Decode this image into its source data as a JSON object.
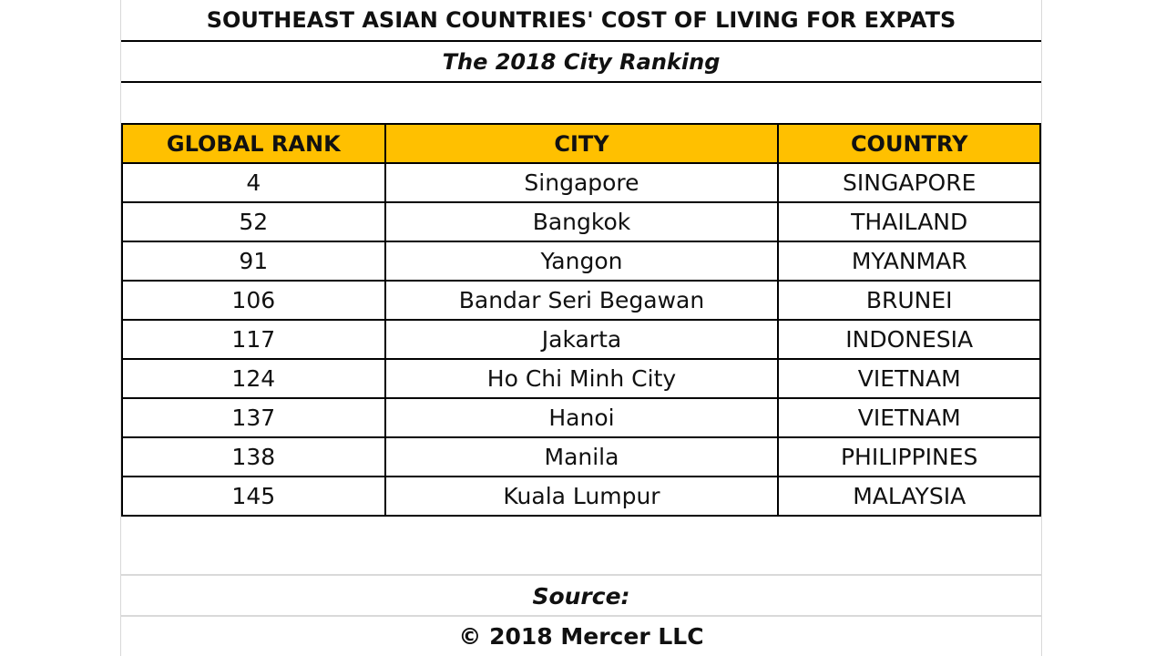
{
  "title": "SOUTHEAST ASIAN COUNTRIES' COST OF LIVING FOR EXPATS",
  "subtitle": "The 2018 City Ranking",
  "table": {
    "headers": [
      "GLOBAL RANK",
      "CITY",
      "COUNTRY"
    ],
    "header_color": "#ffc000",
    "rows": [
      [
        "4",
        "Singapore",
        "SINGAPORE"
      ],
      [
        "52",
        "Bangkok",
        "THAILAND"
      ],
      [
        "91",
        "Yangon",
        "MYANMAR"
      ],
      [
        "106",
        "Bandar Seri Begawan",
        "BRUNEI"
      ],
      [
        "117",
        "Jakarta",
        "INDONESIA"
      ],
      [
        "124",
        "Ho Chi Minh City",
        "VIETNAM"
      ],
      [
        "137",
        "Hanoi",
        "VIETNAM"
      ],
      [
        "138",
        "Manila",
        "PHILIPPINES"
      ],
      [
        "145",
        "Kuala Lumpur",
        "MALAYSIA"
      ]
    ]
  },
  "footer": {
    "source_label": "Source:",
    "copyright": "© 2018 Mercer LLC"
  }
}
